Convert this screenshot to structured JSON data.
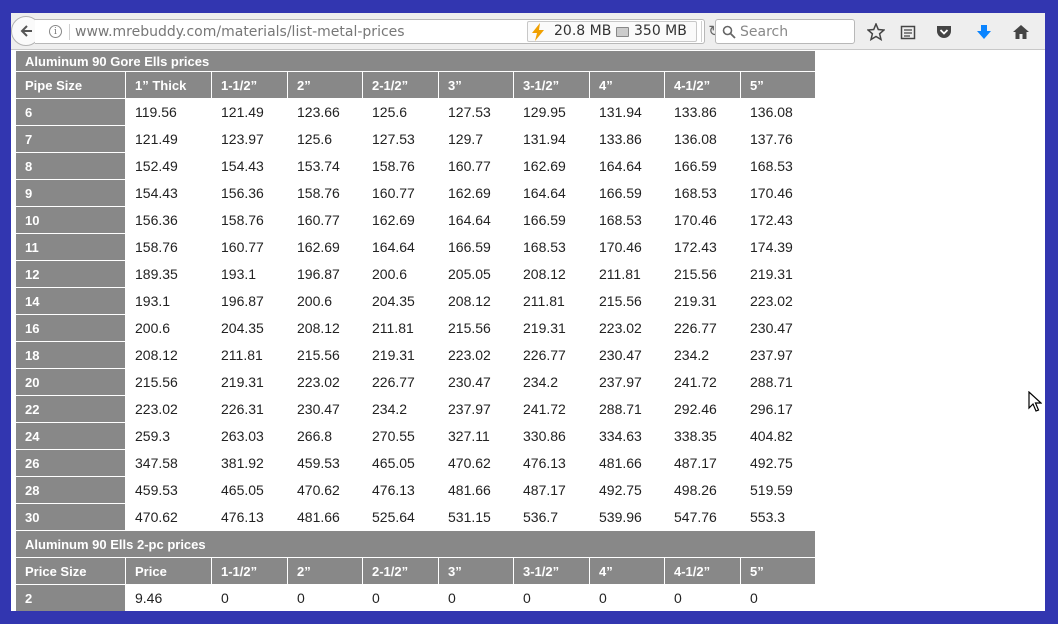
{
  "browser": {
    "url": "www.mrebuddy.com/materials/list-metal-prices",
    "memory_usage": "20.8 MB",
    "disk_usage": "350 MB",
    "search_placeholder": "Search",
    "icons": [
      "back-arrow-icon",
      "info-icon",
      "bolt-icon",
      "disk-icon",
      "reload-icon",
      "search-icon",
      "bookmark-star-icon",
      "reader-view-icon",
      "pocket-icon",
      "download-arrow-icon",
      "home-icon"
    ],
    "colors": {
      "download_icon": "#0a84ff",
      "window_frame": "#3236b0"
    }
  },
  "table1": {
    "title": "Aluminum 90 Gore Ells prices",
    "headers": [
      "Pipe Size",
      "1” Thick",
      "1-1/2”",
      "2”",
      "2-1/2”",
      "3”",
      "3-1/2”",
      "4”",
      "4-1/2”",
      "5”"
    ],
    "rows": [
      [
        "6",
        "119.56",
        "121.49",
        "123.66",
        "125.6",
        "127.53",
        "129.95",
        "131.94",
        "133.86",
        "136.08"
      ],
      [
        "7",
        "121.49",
        "123.97",
        "125.6",
        "127.53",
        "129.7",
        "131.94",
        "133.86",
        "136.08",
        "137.76"
      ],
      [
        "8",
        "152.49",
        "154.43",
        "153.74",
        "158.76",
        "160.77",
        "162.69",
        "164.64",
        "166.59",
        "168.53"
      ],
      [
        "9",
        "154.43",
        "156.36",
        "158.76",
        "160.77",
        "162.69",
        "164.64",
        "166.59",
        "168.53",
        "170.46"
      ],
      [
        "10",
        "156.36",
        "158.76",
        "160.77",
        "162.69",
        "164.64",
        "166.59",
        "168.53",
        "170.46",
        "172.43"
      ],
      [
        "11",
        "158.76",
        "160.77",
        "162.69",
        "164.64",
        "166.59",
        "168.53",
        "170.46",
        "172.43",
        "174.39"
      ],
      [
        "12",
        "189.35",
        "193.1",
        "196.87",
        "200.6",
        "205.05",
        "208.12",
        "211.81",
        "215.56",
        "219.31"
      ],
      [
        "14",
        "193.1",
        "196.87",
        "200.6",
        "204.35",
        "208.12",
        "211.81",
        "215.56",
        "219.31",
        "223.02"
      ],
      [
        "16",
        "200.6",
        "204.35",
        "208.12",
        "211.81",
        "215.56",
        "219.31",
        "223.02",
        "226.77",
        "230.47"
      ],
      [
        "18",
        "208.12",
        "211.81",
        "215.56",
        "219.31",
        "223.02",
        "226.77",
        "230.47",
        "234.2",
        "237.97"
      ],
      [
        "20",
        "215.56",
        "219.31",
        "223.02",
        "226.77",
        "230.47",
        "234.2",
        "237.97",
        "241.72",
        "288.71"
      ],
      [
        "22",
        "223.02",
        "226.31",
        "230.47",
        "234.2",
        "237.97",
        "241.72",
        "288.71",
        "292.46",
        "296.17"
      ],
      [
        "24",
        "259.3",
        "263.03",
        "266.8",
        "270.55",
        "327.11",
        "330.86",
        "334.63",
        "338.35",
        "404.82"
      ],
      [
        "26",
        "347.58",
        "381.92",
        "459.53",
        "465.05",
        "470.62",
        "476.13",
        "481.66",
        "487.17",
        "492.75"
      ],
      [
        "28",
        "459.53",
        "465.05",
        "470.62",
        "476.13",
        "481.66",
        "487.17",
        "492.75",
        "498.26",
        "519.59"
      ],
      [
        "30",
        "470.62",
        "476.13",
        "481.66",
        "525.64",
        "531.15",
        "536.7",
        "539.96",
        "547.76",
        "553.3"
      ]
    ]
  },
  "table2": {
    "title": "Aluminum 90 Ells 2-pc prices",
    "headers": [
      "Price Size",
      "Price",
      "1-1/2”",
      "2”",
      "2-1/2”",
      "3”",
      "3-1/2”",
      "4”",
      "4-1/2”",
      "5”"
    ],
    "rows": [
      [
        "2",
        "9.46",
        "0",
        "0",
        "0",
        "0",
        "0",
        "0",
        "0",
        "0"
      ]
    ]
  }
}
